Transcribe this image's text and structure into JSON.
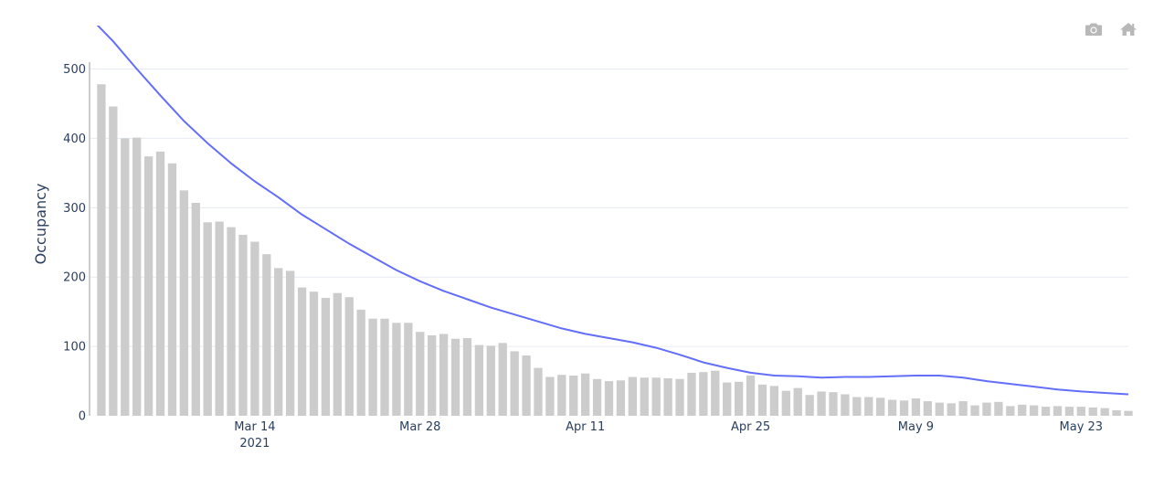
{
  "toolbar": {
    "camera_icon": "camera-icon",
    "home_icon": "home-icon"
  },
  "colors": {
    "bar": "#cccccc",
    "line": "#636efa",
    "grid": "#e6ebf2",
    "text": "#2a3f5f",
    "modebar_icon": "#b8b8b8"
  },
  "chart_data": {
    "type": "bar",
    "ylabel": "Occupancy",
    "ylim": [
      0,
      560
    ],
    "yticks": [
      0,
      100,
      200,
      300,
      400,
      500
    ],
    "xticks": [
      {
        "date": "2021-03-14",
        "label": "Mar 14",
        "sublabel": "2021"
      },
      {
        "date": "2021-03-28",
        "label": "Mar 28",
        "sublabel": ""
      },
      {
        "date": "2021-04-11",
        "label": "Apr 11",
        "sublabel": ""
      },
      {
        "date": "2021-04-25",
        "label": "Apr 25",
        "sublabel": ""
      },
      {
        "date": "2021-05-09",
        "label": "May 9",
        "sublabel": ""
      },
      {
        "date": "2021-05-23",
        "label": "May 23",
        "sublabel": ""
      }
    ],
    "grid": true,
    "series": [
      {
        "type": "bar",
        "x": [
          "2021-03-01",
          "2021-03-02",
          "2021-03-03",
          "2021-03-04",
          "2021-03-05",
          "2021-03-06",
          "2021-03-07",
          "2021-03-08",
          "2021-03-09",
          "2021-03-10",
          "2021-03-11",
          "2021-03-12",
          "2021-03-13",
          "2021-03-14",
          "2021-03-15",
          "2021-03-16",
          "2021-03-17",
          "2021-03-18",
          "2021-03-19",
          "2021-03-20",
          "2021-03-21",
          "2021-03-22",
          "2021-03-23",
          "2021-03-24",
          "2021-03-25",
          "2021-03-26",
          "2021-03-27",
          "2021-03-28",
          "2021-03-29",
          "2021-03-30",
          "2021-03-31",
          "2021-04-01",
          "2021-04-02",
          "2021-04-03",
          "2021-04-04",
          "2021-04-05",
          "2021-04-06",
          "2021-04-07",
          "2021-04-08",
          "2021-04-09",
          "2021-04-10",
          "2021-04-11",
          "2021-04-12",
          "2021-04-13",
          "2021-04-14",
          "2021-04-15",
          "2021-04-16",
          "2021-04-17",
          "2021-04-18",
          "2021-04-19",
          "2021-04-20",
          "2021-04-21",
          "2021-04-22",
          "2021-04-23",
          "2021-04-24",
          "2021-04-25",
          "2021-04-26",
          "2021-04-27",
          "2021-04-28",
          "2021-04-29",
          "2021-04-30",
          "2021-05-01",
          "2021-05-02",
          "2021-05-03",
          "2021-05-04",
          "2021-05-05",
          "2021-05-06",
          "2021-05-07",
          "2021-05-08",
          "2021-05-09",
          "2021-05-10",
          "2021-05-11",
          "2021-05-12",
          "2021-05-13",
          "2021-05-14",
          "2021-05-15",
          "2021-05-16",
          "2021-05-17",
          "2021-05-18",
          "2021-05-19",
          "2021-05-20",
          "2021-05-21",
          "2021-05-22",
          "2021-05-23",
          "2021-05-24",
          "2021-05-25",
          "2021-05-26",
          "2021-05-27"
        ],
        "values": [
          478,
          446,
          400,
          401,
          374,
          381,
          364,
          325,
          307,
          279,
          280,
          272,
          261,
          251,
          233,
          213,
          209,
          185,
          179,
          170,
          177,
          171,
          153,
          140,
          140,
          134,
          134,
          121,
          116,
          118,
          111,
          112,
          102,
          101,
          105,
          93,
          87,
          69,
          56,
          59,
          58,
          61,
          53,
          50,
          51,
          56,
          55,
          55,
          54,
          53,
          62,
          63,
          65,
          48,
          49,
          58,
          45,
          43,
          36,
          40,
          30,
          35,
          34,
          31,
          27,
          27,
          26,
          23,
          22,
          25,
          21,
          19,
          18,
          21,
          15,
          19,
          20,
          14,
          16,
          15,
          13,
          14,
          13,
          13,
          12,
          11,
          8,
          7
        ]
      },
      {
        "type": "line",
        "x": [
          "2021-02-28",
          "2021-03-02",
          "2021-03-04",
          "2021-03-06",
          "2021-03-08",
          "2021-03-10",
          "2021-03-12",
          "2021-03-14",
          "2021-03-16",
          "2021-03-18",
          "2021-03-20",
          "2021-03-22",
          "2021-03-24",
          "2021-03-26",
          "2021-03-28",
          "2021-03-30",
          "2021-04-01",
          "2021-04-03",
          "2021-04-05",
          "2021-04-07",
          "2021-04-09",
          "2021-04-11",
          "2021-04-13",
          "2021-04-15",
          "2021-04-17",
          "2021-04-19",
          "2021-04-21",
          "2021-04-23",
          "2021-04-25",
          "2021-04-27",
          "2021-04-29",
          "2021-05-01",
          "2021-05-03",
          "2021-05-05",
          "2021-05-07",
          "2021-05-09",
          "2021-05-11",
          "2021-05-13",
          "2021-05-15",
          "2021-05-17",
          "2021-05-19",
          "2021-05-21",
          "2021-05-23",
          "2021-05-25",
          "2021-05-27"
        ],
        "values": [
          575,
          540,
          500,
          462,
          425,
          393,
          364,
          338,
          315,
          290,
          269,
          248,
          229,
          210,
          194,
          180,
          168,
          156,
          146,
          136,
          126,
          118,
          112,
          106,
          98,
          88,
          77,
          69,
          62,
          58,
          57,
          55,
          56,
          56,
          57,
          58,
          58,
          55,
          50,
          46,
          42,
          38,
          35,
          33,
          31
        ]
      }
    ]
  }
}
